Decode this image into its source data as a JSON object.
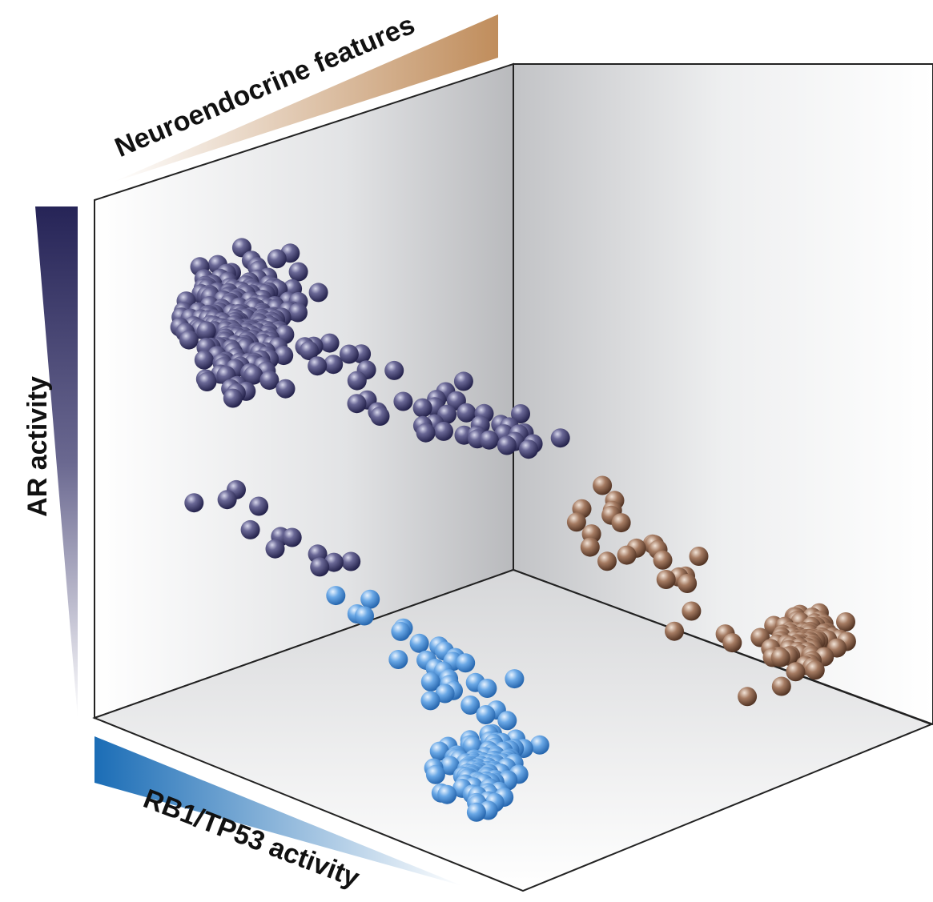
{
  "labels": {
    "ar_activity": "AR activity",
    "neuroendocrine": "Neuroendocrine features",
    "rb1_tp53": "RB1/TP53 activity"
  }
}
